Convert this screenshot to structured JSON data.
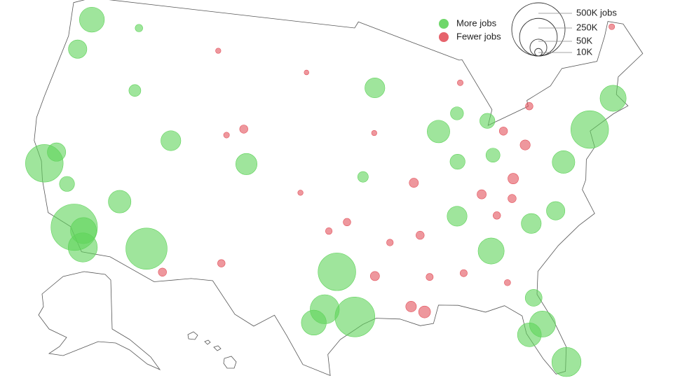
{
  "legend": {
    "items": [
      {
        "label": "More jobs",
        "color": "#5fd35a"
      },
      {
        "label": "Fewer jobs",
        "color": "#e3525c"
      }
    ]
  },
  "size_legend": [
    {
      "value": 500000,
      "label": "500K jobs"
    },
    {
      "value": 250000,
      "label": "250K"
    },
    {
      "value": 50000,
      "label": "50K"
    },
    {
      "value": 10000,
      "label": "10K"
    }
  ],
  "bubbles": [
    {
      "lon": -118.2,
      "lat": 34.0,
      "value": 380000
    },
    {
      "lon": -117.4,
      "lat": 33.9,
      "value": 120000
    },
    {
      "lon": -117.1,
      "lat": 32.8,
      "value": 150000
    },
    {
      "lon": -112.1,
      "lat": 33.4,
      "value": 300000
    },
    {
      "lon": -115.1,
      "lat": 36.2,
      "value": 90000
    },
    {
      "lon": -122.2,
      "lat": 37.7,
      "value": 250000
    },
    {
      "lon": -121.5,
      "lat": 38.6,
      "value": 60000
    },
    {
      "lon": -119.8,
      "lat": 36.7,
      "value": 40000
    },
    {
      "lon": -122.3,
      "lat": 47.6,
      "value": 110000
    },
    {
      "lon": -122.7,
      "lat": 45.5,
      "value": 60000
    },
    {
      "lon": -116.2,
      "lat": 43.6,
      "value": 25000
    },
    {
      "lon": -111.9,
      "lat": 40.7,
      "value": 70000
    },
    {
      "lon": -104.9,
      "lat": 39.7,
      "value": 80000
    },
    {
      "lon": -96.8,
      "lat": 32.8,
      "value": 250000
    },
    {
      "lon": -95.4,
      "lat": 29.8,
      "value": 280000
    },
    {
      "lon": -97.7,
      "lat": 30.3,
      "value": 150000
    },
    {
      "lon": -98.5,
      "lat": 29.4,
      "value": 110000
    },
    {
      "lon": -84.4,
      "lat": 33.7,
      "value": 120000
    },
    {
      "lon": -80.2,
      "lat": 25.8,
      "value": 150000
    },
    {
      "lon": -81.4,
      "lat": 28.5,
      "value": 120000
    },
    {
      "lon": -82.5,
      "lat": 27.9,
      "value": 100000
    },
    {
      "lon": -81.7,
      "lat": 30.3,
      "value": 50000
    },
    {
      "lon": -74.0,
      "lat": 40.7,
      "value": 250000
    },
    {
      "lon": -71.1,
      "lat": 42.4,
      "value": 120000
    },
    {
      "lon": -77.0,
      "lat": 38.9,
      "value": 90000
    },
    {
      "lon": -87.6,
      "lat": 41.9,
      "value": 90000
    },
    {
      "lon": -93.3,
      "lat": 45.0,
      "value": 70000
    },
    {
      "lon": -86.8,
      "lat": 36.2,
      "value": 70000
    },
    {
      "lon": -80.8,
      "lat": 35.2,
      "value": 70000
    },
    {
      "lon": -78.6,
      "lat": 35.8,
      "value": 60000
    },
    {
      "lon": -83.0,
      "lat": 42.3,
      "value": 40000
    },
    {
      "lon": -85.7,
      "lat": 43.0,
      "value": 30000
    },
    {
      "lon": -83.0,
      "lat": 40.0,
      "value": 35000
    },
    {
      "lon": -86.2,
      "lat": 39.8,
      "value": 40000
    },
    {
      "lon": -94.6,
      "lat": 39.1,
      "value": 20000
    },
    {
      "lon": -117.4,
      "lat": 47.7,
      "value": 10000
    },
    {
      "lon": -90.1,
      "lat": 30.0,
      "value": -25000
    },
    {
      "lon": -91.1,
      "lat": 30.4,
      "value": -20000
    },
    {
      "lon": -93.8,
      "lat": 32.5,
      "value": -15000
    },
    {
      "lon": -90.0,
      "lat": 35.1,
      "value": -12000
    },
    {
      "lon": -90.2,
      "lat": 38.6,
      "value": -15000
    },
    {
      "lon": -81.6,
      "lat": 38.3,
      "value": -20000
    },
    {
      "lon": -84.5,
      "lat": 37.5,
      "value": -15000
    },
    {
      "lon": -96.0,
      "lat": 36.1,
      "value": -10000
    },
    {
      "lon": -97.5,
      "lat": 35.5,
      "value": -8000
    },
    {
      "lon": -100.0,
      "lat": 38.0,
      "value": -5000
    },
    {
      "lon": -105.5,
      "lat": 42.0,
      "value": -12000
    },
    {
      "lon": -107.0,
      "lat": 41.5,
      "value": -6000
    },
    {
      "lon": -106.0,
      "lat": 33.0,
      "value": -10000
    },
    {
      "lon": -109.0,
      "lat": 47.0,
      "value": -5000
    },
    {
      "lon": -100.0,
      "lat": 46.0,
      "value": -4000
    },
    {
      "lon": -93.5,
      "lat": 42.0,
      "value": -5000
    },
    {
      "lon": -92.5,
      "lat": 34.7,
      "value": -8000
    },
    {
      "lon": -89.5,
      "lat": 32.3,
      "value": -9000
    },
    {
      "lon": -86.8,
      "lat": 32.4,
      "value": -9000
    },
    {
      "lon": -80.0,
      "lat": 40.4,
      "value": -18000
    },
    {
      "lon": -81.7,
      "lat": 41.5,
      "value": -12000
    },
    {
      "lon": -78.9,
      "lat": 42.9,
      "value": -10000
    },
    {
      "lon": -69.0,
      "lat": 47.0,
      "value": -6000
    },
    {
      "lon": -110.5,
      "lat": 32.0,
      "value": -12000
    },
    {
      "lon": -85.0,
      "lat": 45.0,
      "value": -6000
    },
    {
      "lon": -82.0,
      "lat": 37.0,
      "value": -12000
    },
    {
      "lon": -83.5,
      "lat": 36.0,
      "value": -10000
    },
    {
      "lon": -83.5,
      "lat": 31.5,
      "value": -7000
    }
  ]
}
